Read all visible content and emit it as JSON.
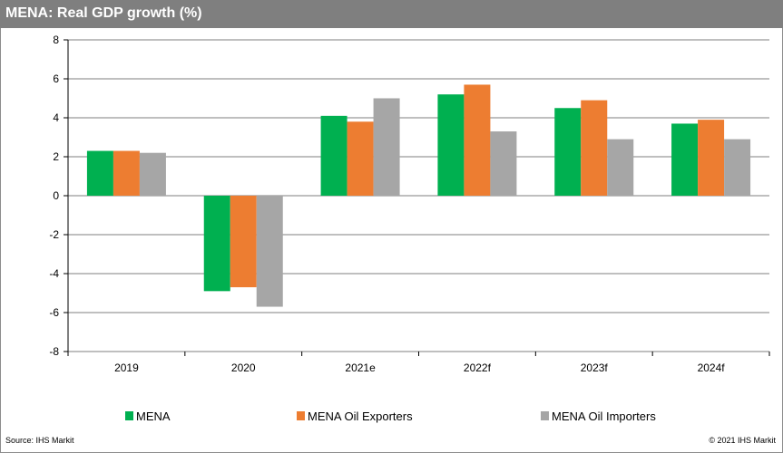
{
  "header": {
    "title": "MENA: Real GDP growth (%)"
  },
  "footer": {
    "source": "Source:  IHS Markit",
    "copyright": "© 2021  IHS Markit"
  },
  "chart_data": {
    "type": "bar",
    "title": "MENA: Real GDP growth (%)",
    "xlabel": "",
    "ylabel": "",
    "ylim": [
      -8,
      8
    ],
    "yticks": [
      8,
      6,
      4,
      2,
      0,
      -2,
      -4,
      -6,
      -8
    ],
    "grid": true,
    "legend_position": "bottom",
    "categories": [
      "2019",
      "2020",
      "2021e",
      "2022f",
      "2023f",
      "2024f"
    ],
    "series": [
      {
        "name": "MENA",
        "color": "#00b050",
        "values": [
          2.3,
          -4.9,
          4.1,
          5.2,
          4.5,
          3.7
        ]
      },
      {
        "name": "MENA Oil Exporters",
        "color": "#ed7d31",
        "values": [
          2.3,
          -4.7,
          3.8,
          5.7,
          4.9,
          3.9
        ]
      },
      {
        "name": "MENA Oil Importers",
        "color": "#a6a6a6",
        "values": [
          2.2,
          -5.7,
          5.0,
          3.3,
          2.9,
          2.9
        ]
      }
    ]
  }
}
